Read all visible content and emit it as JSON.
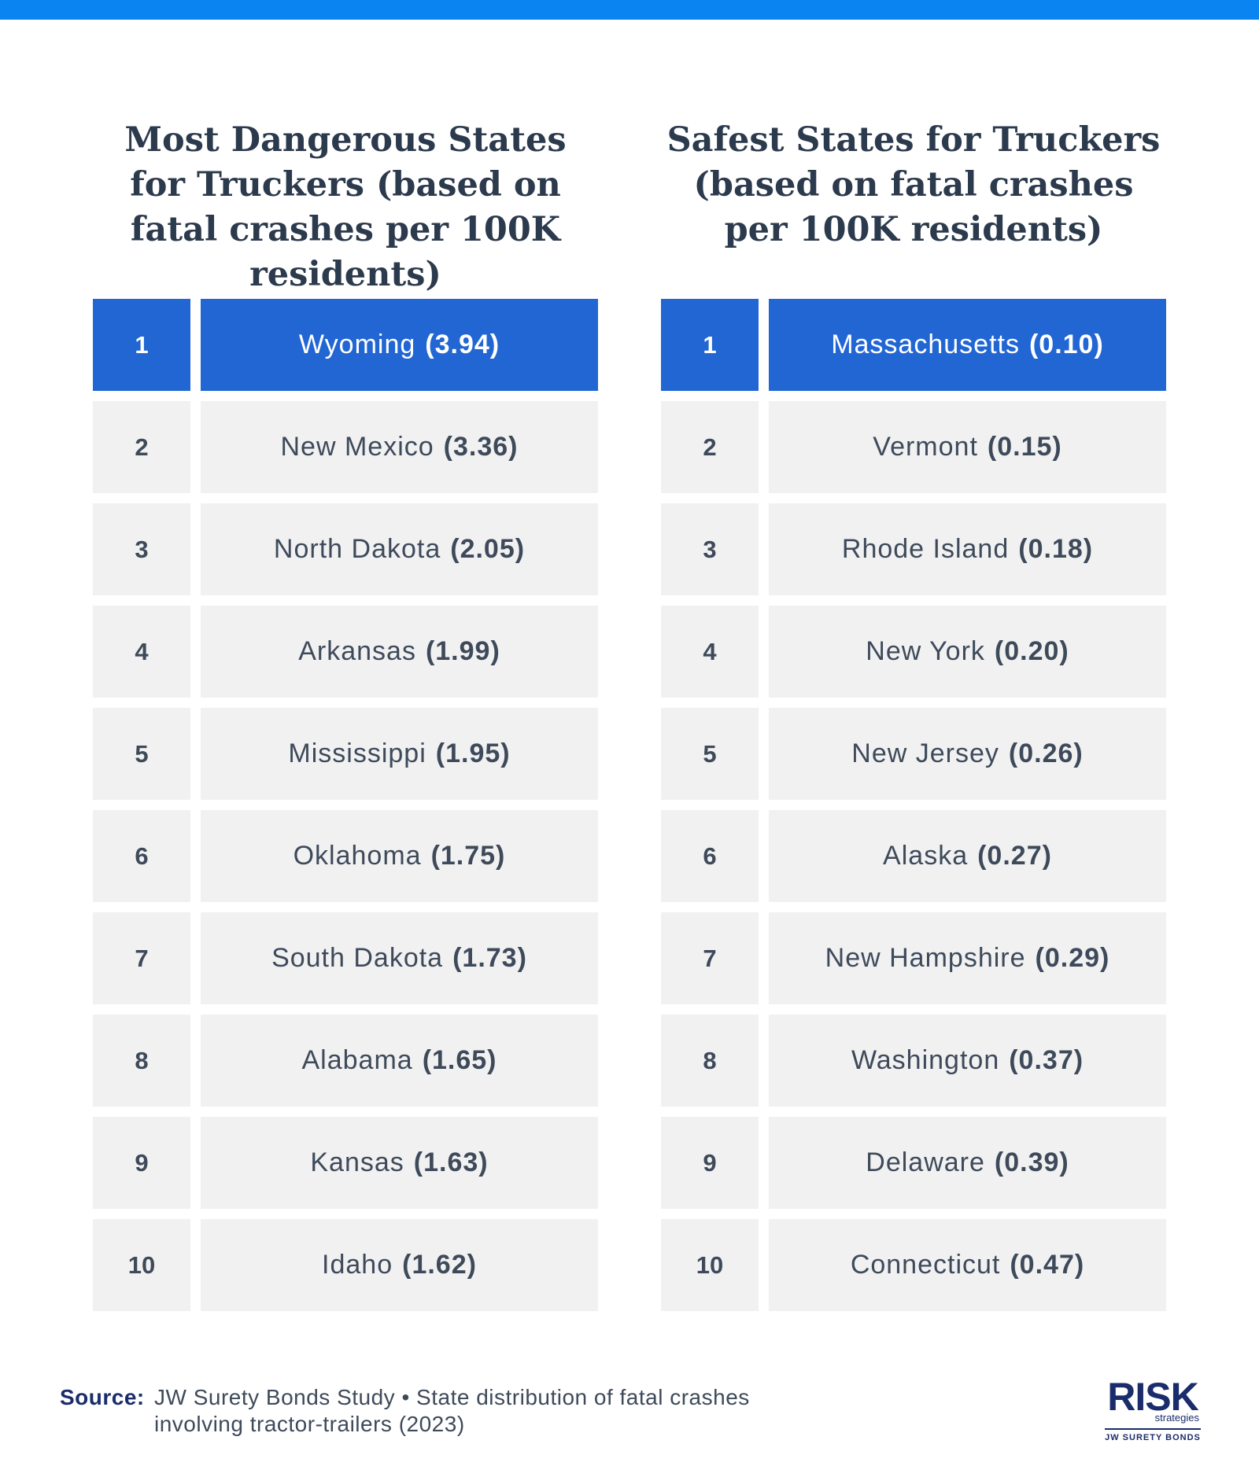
{
  "colors": {
    "accent_bar": "#0a84f0",
    "highlight_row": "#2266d4",
    "row_background": "#f1f1f2",
    "title_text": "#2c3a4d",
    "body_text": "#3e4a5a",
    "brand_navy": "#1a2c6b"
  },
  "chart_data": [
    {
      "type": "table",
      "title": "Most Dangerous States for Truckers (based on fatal crashes per 100K residents)",
      "rows": [
        {
          "rank": "1",
          "state": "Wyoming",
          "value": "(3.94)"
        },
        {
          "rank": "2",
          "state": "New Mexico",
          "value": "(3.36)"
        },
        {
          "rank": "3",
          "state": "North Dakota",
          "value": "(2.05)"
        },
        {
          "rank": "4",
          "state": "Arkansas",
          "value": "(1.99)"
        },
        {
          "rank": "5",
          "state": "Mississippi",
          "value": "(1.95)"
        },
        {
          "rank": "6",
          "state": "Oklahoma",
          "value": "(1.75)"
        },
        {
          "rank": "7",
          "state": "South Dakota",
          "value": "(1.73)"
        },
        {
          "rank": "8",
          "state": "Alabama",
          "value": "(1.65)"
        },
        {
          "rank": "9",
          "state": "Kansas",
          "value": "(1.63)"
        },
        {
          "rank": "10",
          "state": "Idaho",
          "value": "(1.62)"
        }
      ]
    },
    {
      "type": "table",
      "title": "Safest States for Truckers (based on fatal crashes per 100K residents)",
      "rows": [
        {
          "rank": "1",
          "state": "Massachusetts",
          "value": "(0.10)"
        },
        {
          "rank": "2",
          "state": "Vermont",
          "value": "(0.15)"
        },
        {
          "rank": "3",
          "state": "Rhode Island",
          "value": "(0.18)"
        },
        {
          "rank": "4",
          "state": "New York",
          "value": "(0.20)"
        },
        {
          "rank": "5",
          "state": "New Jersey",
          "value": "(0.26)"
        },
        {
          "rank": "6",
          "state": "Alaska",
          "value": "(0.27)"
        },
        {
          "rank": "7",
          "state": "New Hampshire",
          "value": "(0.29)"
        },
        {
          "rank": "8",
          "state": "Washington",
          "value": "(0.37)"
        },
        {
          "rank": "9",
          "state": "Delaware",
          "value": "(0.39)"
        },
        {
          "rank": "10",
          "state": "Connecticut",
          "value": "(0.47)"
        }
      ]
    }
  ],
  "footer": {
    "source_label": "Source:",
    "source_text": "JW Surety Bonds Study • State distribution of fatal crashes involving tractor-trailers (2023)"
  },
  "logo": {
    "word": "RISK",
    "sub": "strategies",
    "brand": "JW SURETY BONDS"
  }
}
